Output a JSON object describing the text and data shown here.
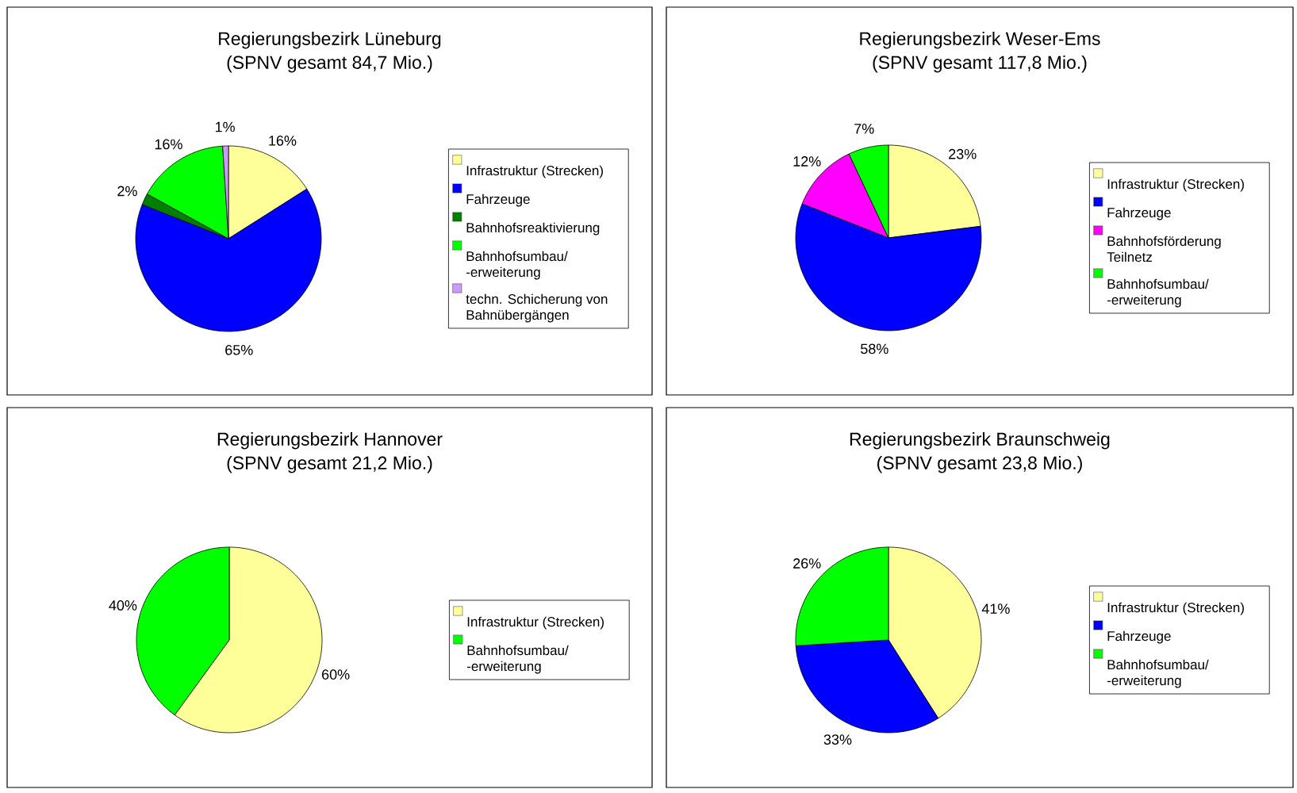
{
  "chart_data": [
    {
      "type": "pie",
      "title": "Regierungsbezirk Lüneburg",
      "subtitle": "(SPNV gesamt 84,7 Mio.)",
      "categories": [
        "Infrastruktur (Strecken)",
        "Fahrzeuge",
        "Bahnhofsreaktivierung",
        "Bahnhofsumbau/ -erweiterung",
        "techn. Schicherung von Bahnübergängen"
      ],
      "values": [
        16,
        65,
        2,
        16,
        1
      ],
      "colors": [
        "#ffff99",
        "#0000ff",
        "#008000",
        "#00ff00",
        "#cc99ff"
      ],
      "value_labels": [
        "16%",
        "65%",
        "2%",
        "16%",
        "1%"
      ],
      "legend": "right"
    },
    {
      "type": "pie",
      "title": "Regierungsbezirk Weser-Ems",
      "subtitle": "(SPNV gesamt 117,8 Mio.)",
      "categories": [
        "Infrastruktur (Strecken)",
        "Fahrzeuge",
        "Bahnhofsförderung Teilnetz",
        "Bahnhofsumbau/ -erweiterung"
      ],
      "values": [
        23,
        58,
        12,
        7
      ],
      "colors": [
        "#ffff99",
        "#0000ff",
        "#ff00ff",
        "#00ff00"
      ],
      "value_labels": [
        "23%",
        "58%",
        "12%",
        "7%"
      ],
      "legend": "right"
    },
    {
      "type": "pie",
      "title": "Regierungsbezirk Hannover",
      "subtitle": "(SPNV gesamt 21,2 Mio.)",
      "categories": [
        "Infrastruktur (Strecken)",
        "Bahnhofsumbau/ -erweiterung"
      ],
      "values": [
        60,
        40
      ],
      "colors": [
        "#ffff99",
        "#00ff00"
      ],
      "value_labels": [
        "60%",
        "40%"
      ],
      "legend": "right"
    },
    {
      "type": "pie",
      "title": "Regierungsbezirk Braunschweig",
      "subtitle": "(SPNV gesamt 23,8 Mio.)",
      "categories": [
        "Infrastruktur (Strecken)",
        "Fahrzeuge",
        "Bahnhofsumbau/ -erweiterung"
      ],
      "values": [
        41,
        33,
        26
      ],
      "colors": [
        "#ffff99",
        "#0000ff",
        "#00ff00"
      ],
      "value_labels": [
        "41%",
        "33%",
        "26%"
      ],
      "legend": "right"
    }
  ]
}
